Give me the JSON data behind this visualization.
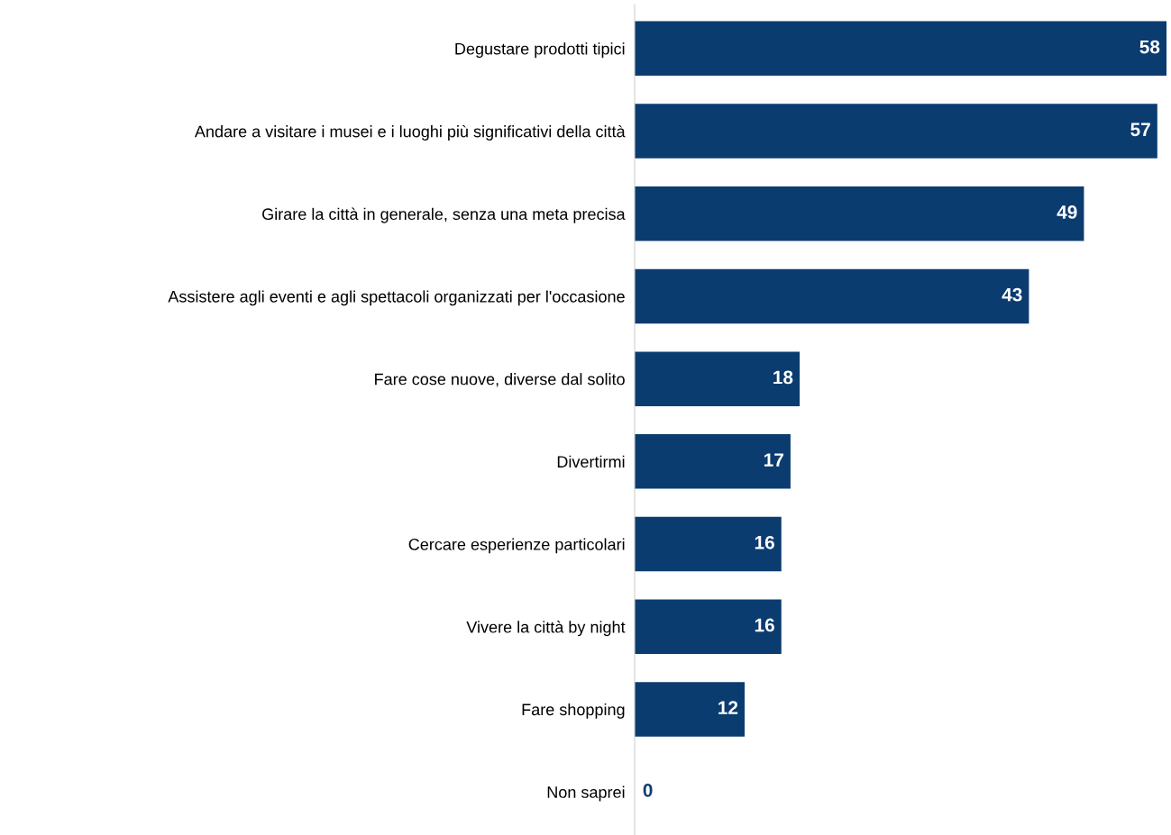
{
  "chart_data": {
    "type": "bar",
    "orientation": "horizontal",
    "categories": [
      "Degustare prodotti tipici",
      "Andare a visitare i musei e i luoghi più significativi della città",
      "Girare la città in generale, senza una meta precisa",
      "Assistere agli eventi e agli spettacoli organizzati per l'occasione",
      "Fare cose nuove, diverse dal solito",
      "Divertirmi",
      "Cercare esperienze particolari",
      "Vivere la città by night",
      "Fare shopping",
      "Non saprei"
    ],
    "values": [
      58,
      57,
      49,
      43,
      18,
      17,
      16,
      16,
      12,
      0
    ],
    "color": "#0b3c70",
    "data_labels": true,
    "grid": false,
    "legend": false,
    "tick_labels": "y"
  }
}
